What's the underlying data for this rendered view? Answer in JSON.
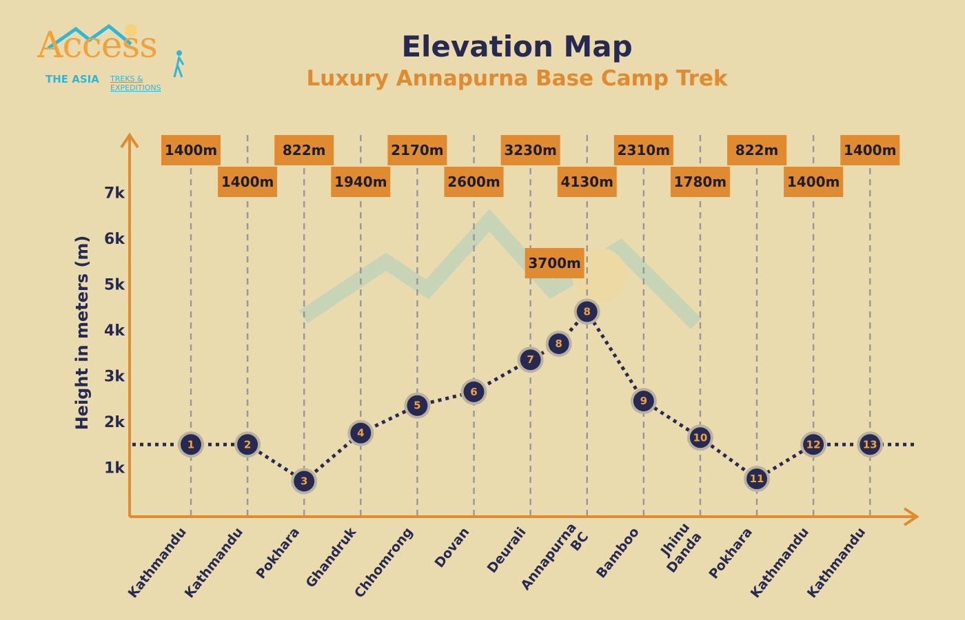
{
  "brand": {
    "name": "Access",
    "tagline": "THE ASIA",
    "tagline_sub": "TREKS & EXPEDITIONS"
  },
  "header": {
    "title": "Elevation Map",
    "subtitle": "Luxury Annapurna Base Camp Trek"
  },
  "colors": {
    "background": "#eadbae",
    "axis": "#e08b30",
    "label_box": "#e08b30",
    "point": "#262a52",
    "point_number": "#f0a33a",
    "title": "#262a52"
  },
  "chart_data": {
    "type": "line",
    "title": "Elevation Map",
    "subtitle": "Luxury Annapurna Base Camp Trek",
    "ylabel": "Height in meters (m)",
    "xlabel": "",
    "yticks": [
      "1k",
      "2k",
      "3k",
      "4k",
      "5k",
      "6k",
      "7k"
    ],
    "ylim": [
      0,
      7500
    ],
    "grid": "vertical dashed",
    "legend": "none",
    "categories": [
      "Kathmandu",
      "Kathmandu",
      "Pokhara",
      "Ghandruk",
      "Chhomrong",
      "Dovan",
      "Deurali",
      "Annapurna BC",
      "Bamboo",
      "Jhinu Danda",
      "Pokhara",
      "Kathmandu",
      "Kathmandu"
    ],
    "points": [
      {
        "num": "1",
        "day": 1,
        "y": 1500
      },
      {
        "num": "2",
        "day": 2,
        "y": 1500
      },
      {
        "num": "3",
        "day": 3,
        "y": 700
      },
      {
        "num": "4",
        "day": 4,
        "y": 1750
      },
      {
        "num": "5",
        "day": 5,
        "y": 2350
      },
      {
        "num": "6",
        "day": 6,
        "y": 2650
      },
      {
        "num": "7",
        "day": 7,
        "y": 3350
      },
      {
        "num": "8",
        "day": 7.5,
        "y": 3700
      },
      {
        "num": "8",
        "day": 8,
        "y": 4400
      },
      {
        "num": "9",
        "day": 9,
        "y": 2450
      },
      {
        "num": "10",
        "day": 10,
        "y": 1650
      },
      {
        "num": "11",
        "day": 11,
        "y": 750
      },
      {
        "num": "12",
        "day": 12,
        "y": 1500
      },
      {
        "num": "13",
        "day": 13,
        "y": 1500
      }
    ],
    "elevation_labels": [
      {
        "day": 1,
        "text": "1400m",
        "row": "top"
      },
      {
        "day": 2,
        "text": "1400m",
        "row": "bottom"
      },
      {
        "day": 3,
        "text": "822m",
        "row": "top"
      },
      {
        "day": 4,
        "text": "1940m",
        "row": "bottom"
      },
      {
        "day": 5,
        "text": "2170m",
        "row": "top"
      },
      {
        "day": 6,
        "text": "2600m",
        "row": "bottom"
      },
      {
        "day": 7,
        "text": "3230m",
        "row": "top"
      },
      {
        "day": 8,
        "text": "4130m",
        "row": "bottom"
      },
      {
        "day": 9,
        "text": "2310m",
        "row": "top"
      },
      {
        "day": 10,
        "text": "1780m",
        "row": "bottom"
      },
      {
        "day": 11,
        "text": "822m",
        "row": "top"
      },
      {
        "day": 12,
        "text": "1400m",
        "row": "bottom"
      },
      {
        "day": 13,
        "text": "1400m",
        "row": "top"
      }
    ],
    "annotation": {
      "text": "3700m",
      "day": 7.5,
      "y": 3700
    }
  }
}
